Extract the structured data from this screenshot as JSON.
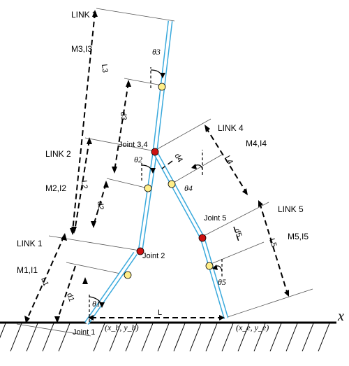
{
  "links": [
    {
      "id": "link1",
      "label": "LINK 1",
      "mass": "M1,I1",
      "length": "L1",
      "com": "d1",
      "angle": "θ1"
    },
    {
      "id": "link2",
      "label": "LINK 2",
      "mass": "M2,I2",
      "length": "L2",
      "com": "d2",
      "angle": "θ2"
    },
    {
      "id": "link3",
      "label": "LINK 3",
      "mass": "M3,I3",
      "length": "L3",
      "com": "d3",
      "angle": "θ3"
    },
    {
      "id": "link4",
      "label": "LINK 4",
      "mass": "M4,I4",
      "length": "L4",
      "com": "d4",
      "angle": "θ4"
    },
    {
      "id": "link5",
      "label": "LINK 5",
      "mass": "M5,I5",
      "length": "L5",
      "com": "d5",
      "angle": "θ5"
    }
  ],
  "joints": {
    "joint1": "Joint 1",
    "joint2": "Joint 2",
    "joint34": "Joint 3,4",
    "joint5": "Joint 5"
  },
  "coords": {
    "base": "(x_b, y_b)",
    "end": "(x_e, y_e)",
    "ground_length": "L"
  },
  "axis": {
    "x": "x"
  },
  "colors": {
    "link_stroke": "#39a9dc",
    "joint_fill": "#cc1111",
    "com_fill": "#ffee88",
    "ink": "#000000"
  }
}
